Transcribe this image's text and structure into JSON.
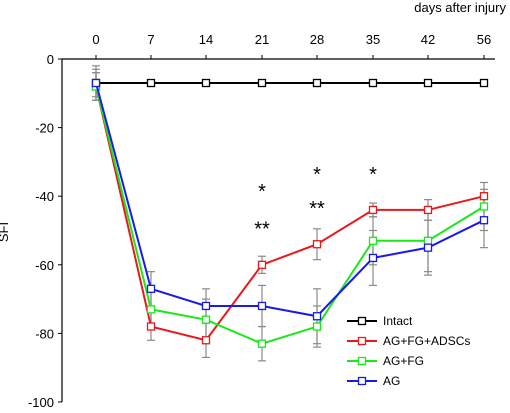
{
  "chart_data": {
    "type": "line",
    "x": [
      0,
      7,
      14,
      21,
      28,
      35,
      42,
      56
    ],
    "x_tick_labels": [
      "0",
      "7",
      "14",
      "21",
      "28",
      "35",
      "42",
      "56"
    ],
    "xlabel": "days after injury",
    "ylabel": "SFI",
    "ylim": [
      -100,
      0
    ],
    "y_ticks": [
      0,
      -20,
      -40,
      -60,
      -80,
      -100
    ],
    "y_tick_labels": [
      "0",
      "-20",
      "-40",
      "-60",
      "-80",
      "-100"
    ],
    "grid": false,
    "legend_position": "bottom-right",
    "series": [
      {
        "name": "Intact",
        "color": "#000000",
        "values": [
          -7,
          -7,
          -7,
          -7,
          -7,
          -7,
          -7,
          -7
        ],
        "errors": [
          5,
          0,
          0,
          0,
          0,
          0,
          0,
          0
        ]
      },
      {
        "name": "AG+FG+ADSCs",
        "color": "#e8191b",
        "values": [
          -8,
          -78,
          -82,
          -60,
          -54,
          -44,
          -44,
          -40
        ],
        "errors": [
          4,
          4,
          5,
          2.5,
          4.5,
          2,
          3,
          2
        ]
      },
      {
        "name": "AG+FG",
        "color": "#19e819",
        "values": [
          -8,
          -73,
          -76,
          -83,
          -78,
          -53,
          -53,
          -43
        ],
        "errors": [
          4,
          5,
          6,
          5,
          6,
          7,
          9,
          7
        ]
      },
      {
        "name": "AG",
        "color": "#1a1ae8",
        "values": [
          -7,
          -67,
          -72,
          -72,
          -75,
          -58,
          -55,
          -47
        ],
        "errors": [
          4,
          5,
          5,
          6,
          8,
          8,
          8,
          8
        ]
      }
    ],
    "annotations": [
      {
        "text": "*",
        "x": 21,
        "y": -37
      },
      {
        "text": "**",
        "x": 21,
        "y": -48
      },
      {
        "text": "*",
        "x": 28,
        "y": -32
      },
      {
        "text": "**",
        "x": 28,
        "y": -42
      },
      {
        "text": "*",
        "x": 35,
        "y": -32
      }
    ]
  }
}
